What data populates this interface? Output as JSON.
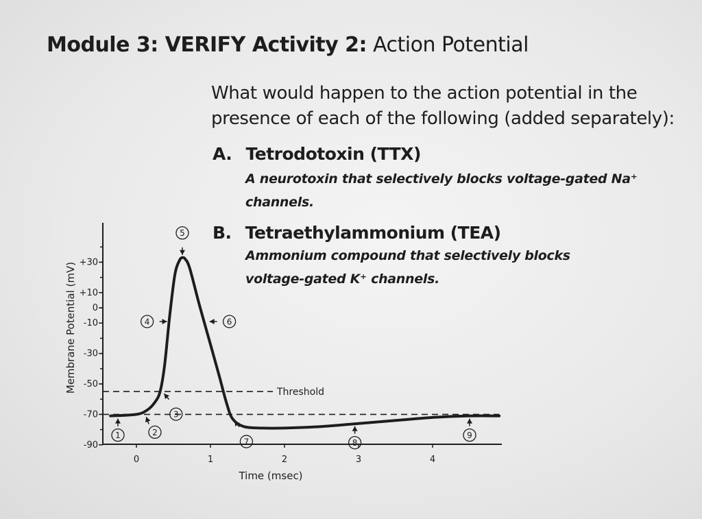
{
  "header": {
    "title_bold": "Module 3: VERIFY Activity 2:",
    "title_regular": " Action Potential"
  },
  "question": {
    "text": "What would happen to the action potential in the presence of each of the following (added separately):"
  },
  "items": [
    {
      "letter": "A.",
      "name": "Tetrodotoxin (TTX)",
      "description_line1": "A neurotoxin that selectively blocks voltage-gated Na⁺",
      "description_line2": "channels."
    },
    {
      "letter": "B.",
      "name": "Tetraethylammonium (TEA)",
      "description_line1": "Ammonium compound that selectively blocks",
      "description_line2": "voltage-gated K⁺ channels."
    }
  ],
  "chart_data": {
    "type": "line",
    "title": "",
    "xlabel": "Time (msec)",
    "ylabel": "Membrane Potential (mV)",
    "x_ticks": [
      {
        "value": 0,
        "label": "0"
      },
      {
        "value": 1,
        "label": "1"
      },
      {
        "value": 2,
        "label": "2"
      },
      {
        "value": 3,
        "label": "3"
      },
      {
        "value": 4,
        "label": "4"
      }
    ],
    "y_ticks": [
      {
        "value": 30,
        "label": "+30"
      },
      {
        "value": 10,
        "label": "+10"
      },
      {
        "value": 0,
        "label": "0"
      },
      {
        "value": -10,
        "label": "-10"
      },
      {
        "value": -30,
        "label": "-30"
      },
      {
        "value": -50,
        "label": "-50"
      },
      {
        "value": -70,
        "label": "-70"
      },
      {
        "value": -90,
        "label": "-90"
      }
    ],
    "xlim": [
      -0.35,
      4.9
    ],
    "ylim": [
      -96,
      55
    ],
    "grid": false,
    "series": [
      {
        "x": [
          -0.35,
          0.0,
          0.15,
          0.25,
          0.32,
          0.38,
          0.45,
          0.52,
          0.58,
          0.62,
          0.66,
          0.72,
          0.85,
          1.0,
          1.12,
          1.22,
          1.3,
          1.45,
          1.7,
          2.0,
          2.5,
          3.0,
          3.5,
          4.0,
          4.5,
          4.9
        ],
        "y": [
          -71,
          -70,
          -67,
          -62,
          -55,
          -38,
          -5,
          22,
          31,
          33,
          32,
          26,
          2,
          -24,
          -45,
          -63,
          -73,
          -78,
          -79,
          -79,
          -78,
          -76,
          -74,
          -72,
          -71,
          -71
        ]
      }
    ],
    "threshold": {
      "value": -55,
      "label": "Threshold"
    },
    "resting_line": {
      "value": -70
    },
    "markers": [
      {
        "label": "1",
        "x": -0.25,
        "y": -71,
        "arrow": "up"
      },
      {
        "label": "2",
        "x": 0.12,
        "y": -70,
        "arrow": "up-right"
      },
      {
        "label": "3",
        "x": 0.35,
        "y": -55,
        "arrow": "up-left"
      },
      {
        "label": "4",
        "x": 0.45,
        "y": -9,
        "arrow": "right"
      },
      {
        "label": "5",
        "x": 0.62,
        "y": 33,
        "arrow": "down"
      },
      {
        "label": "6",
        "x": 0.95,
        "y": -9,
        "arrow": "left"
      },
      {
        "label": "7",
        "x": 1.3,
        "y": -73,
        "arrow": "up-left"
      },
      {
        "label": "8",
        "x": 2.95,
        "y": -76,
        "arrow": "up"
      },
      {
        "label": "9",
        "x": 4.5,
        "y": -71,
        "arrow": "up"
      }
    ]
  }
}
